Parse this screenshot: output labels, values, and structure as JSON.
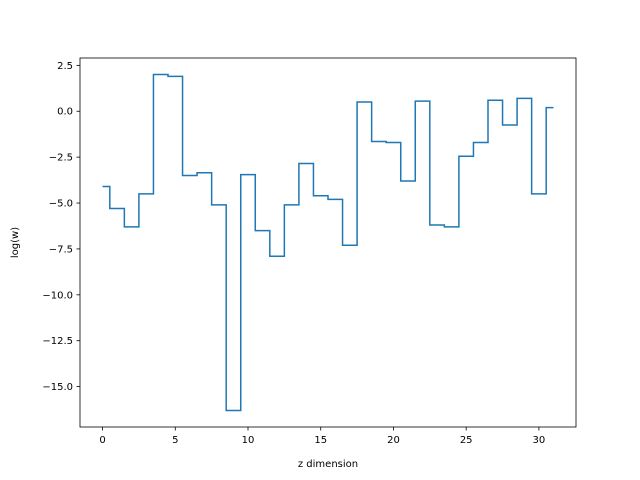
{
  "chart_data": {
    "type": "line",
    "drawstyle": "steps-mid",
    "title": "",
    "xlabel": "z dimension",
    "ylabel": "log(w)",
    "xlim": [
      -1.55,
      32.55
    ],
    "ylim": [
      -17.2,
      2.9
    ],
    "xticks": [
      0,
      5,
      10,
      15,
      20,
      25,
      30
    ],
    "yticks": [
      2.5,
      0.0,
      -2.5,
      -5.0,
      -7.5,
      -10.0,
      -12.5,
      -15.0
    ],
    "ytick_labels": [
      "2.5",
      "0.0",
      "−2.5",
      "−5.0",
      "−7.5",
      "−10.0",
      "−12.5",
      "−15.0"
    ],
    "grid": false,
    "line_color": "#1f77b4",
    "series": [
      {
        "x": [
          0,
          1,
          2,
          3,
          4,
          5,
          6,
          7,
          8,
          9,
          10,
          11,
          12,
          13,
          14,
          15,
          16,
          17,
          18,
          19,
          20,
          21,
          22,
          23,
          24,
          25,
          26,
          27,
          28,
          29,
          30,
          31
        ],
        "values": [
          -4.1,
          -5.3,
          -6.3,
          -4.5,
          2.0,
          1.9,
          -3.5,
          -3.35,
          -5.1,
          -16.3,
          -3.45,
          -6.5,
          -7.9,
          -5.1,
          -2.85,
          -4.6,
          -4.8,
          -7.3,
          0.5,
          -1.65,
          -1.7,
          -3.8,
          0.55,
          -6.2,
          -6.3,
          -2.45,
          -1.7,
          0.6,
          -0.75,
          0.7,
          -4.5,
          0.2
        ]
      }
    ]
  }
}
